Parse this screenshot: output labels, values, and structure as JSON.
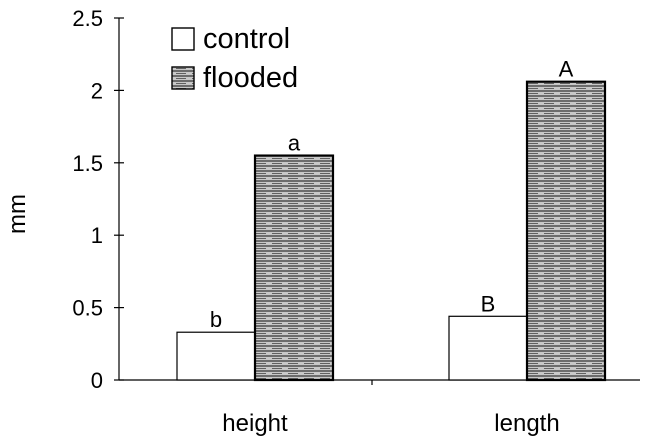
{
  "chart_data": {
    "type": "bar",
    "title": "",
    "xlabel": "",
    "ylabel": "mm",
    "categories": [
      "height",
      "length"
    ],
    "series": [
      {
        "name": "control",
        "values": [
          0.33,
          0.44
        ],
        "fill": "white"
      },
      {
        "name": "flooded",
        "values": [
          1.55,
          2.06
        ],
        "fill": "hatched"
      }
    ],
    "annotations": [
      {
        "category": "height",
        "series": "control",
        "text": "b"
      },
      {
        "category": "height",
        "series": "flooded",
        "text": "a"
      },
      {
        "category": "length",
        "series": "control",
        "text": "B"
      },
      {
        "category": "length",
        "series": "flooded",
        "text": "A"
      }
    ],
    "ylim": [
      0,
      2.5
    ],
    "yticks": [
      0,
      0.5,
      1,
      1.5,
      2,
      2.5
    ],
    "ytick_labels": [
      "0",
      "0.5",
      "1",
      "1.5",
      "2",
      "2.5"
    ],
    "grid": false,
    "legend_position": "top-left"
  },
  "colors": {
    "outline": "#000000",
    "control_fill": "#ffffff",
    "flooded_base": "#c8c8c8",
    "flooded_line": "#3a3a3a"
  }
}
